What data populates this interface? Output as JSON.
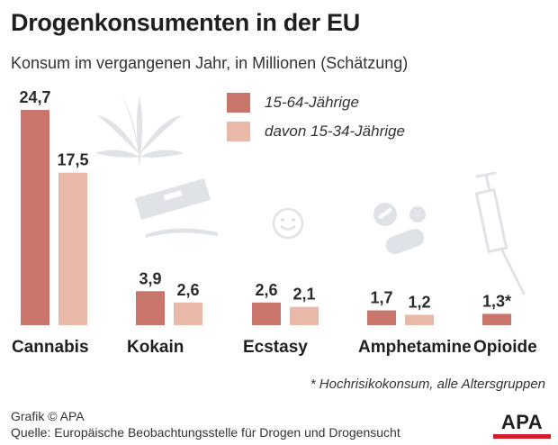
{
  "title": "Drogenkonsumenten in der EU",
  "subtitle": "Konsum im vergangenen Jahr, in Millionen (Schätzung)",
  "footnote": "* Hochrisikokonsum, alle Altersgruppen",
  "credit": "Grafik © APA",
  "source": "Quelle: Europäische Beobachtungsstelle für Drogen und Drogensucht",
  "logo_text": "APA",
  "colors": {
    "dark": "#c8766b",
    "light": "#eab8a9",
    "brand_red": "#d21e2b",
    "icon": "#dfe3e8"
  },
  "icons": [
    "cannabis-leaf-icon",
    "razor-blade-icon",
    "smiley-pill-icon",
    "capsule-pills-icon",
    "syringe-icon"
  ],
  "chart_data": {
    "type": "bar",
    "categories": [
      "Cannabis",
      "Kokain",
      "Ecstasy",
      "Amphetamine",
      "Opioide"
    ],
    "series": [
      {
        "name": "15-64-Jährige",
        "values": [
          24.7,
          3.9,
          2.6,
          1.7,
          1.3
        ],
        "labels": [
          "24,7",
          "3,9",
          "2,6",
          "1,7",
          "1,3*"
        ]
      },
      {
        "name": "davon 15-34-Jährige",
        "values": [
          17.5,
          2.6,
          2.1,
          1.2,
          null
        ],
        "labels": [
          "17,5",
          "2,6",
          "2,1",
          "1,2",
          ""
        ]
      }
    ],
    "ylim": [
      0,
      24.7
    ],
    "legend": "top-center",
    "grid": false,
    "xlabel": "",
    "ylabel": ""
  }
}
